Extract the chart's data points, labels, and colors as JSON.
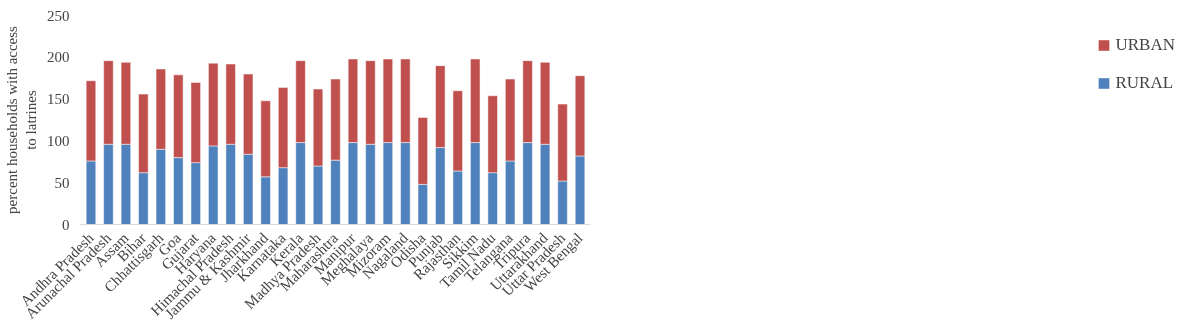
{
  "chart_data": {
    "type": "bar",
    "stacked": true,
    "ylabel": "percent households with access\nto latrines",
    "categories": [
      "Andhra Pradesh",
      "Arunachal Pradesh",
      "Assam",
      "Bihar",
      "Chhattisgarh",
      "Goa",
      "Gujarat",
      "Haryana",
      "Himachal Pradesh",
      "Jammu & Kashmir",
      "Jharkhand",
      "Karnataka",
      "Kerala",
      "Madhya Pradesh",
      "Maharashtra",
      "Manipur",
      "Meghalaya",
      "Mizoram",
      "Nagaland",
      "Odisha",
      "Punjab",
      "Rajasthan",
      "Sikkim",
      "Tamil Nadu",
      "Telangana",
      "Tripura",
      "Uttarakhand",
      "Uttar Pradesh",
      "West Bengal"
    ],
    "series": [
      {
        "name": "RURAL",
        "color": "#4f81bd",
        "values": [
          76,
          96,
          96,
          62,
          90,
          80,
          74,
          94,
          96,
          84,
          57,
          68,
          98,
          70,
          77,
          98,
          96,
          98,
          98,
          48,
          92,
          64,
          98,
          62,
          76,
          98,
          96,
          52,
          82
        ]
      },
      {
        "name": "URBAN",
        "color": "#c0504d",
        "values": [
          96,
          100,
          98,
          94,
          96,
          99,
          96,
          99,
          96,
          96,
          91,
          96,
          98,
          92,
          97,
          100,
          100,
          100,
          100,
          80,
          98,
          96,
          100,
          92,
          98,
          98,
          98,
          92,
          96
        ]
      }
    ],
    "ylim": [
      0,
      250
    ],
    "yticks": [
      0,
      50,
      100,
      150,
      200,
      250
    ],
    "grid": false,
    "legend": "right"
  }
}
